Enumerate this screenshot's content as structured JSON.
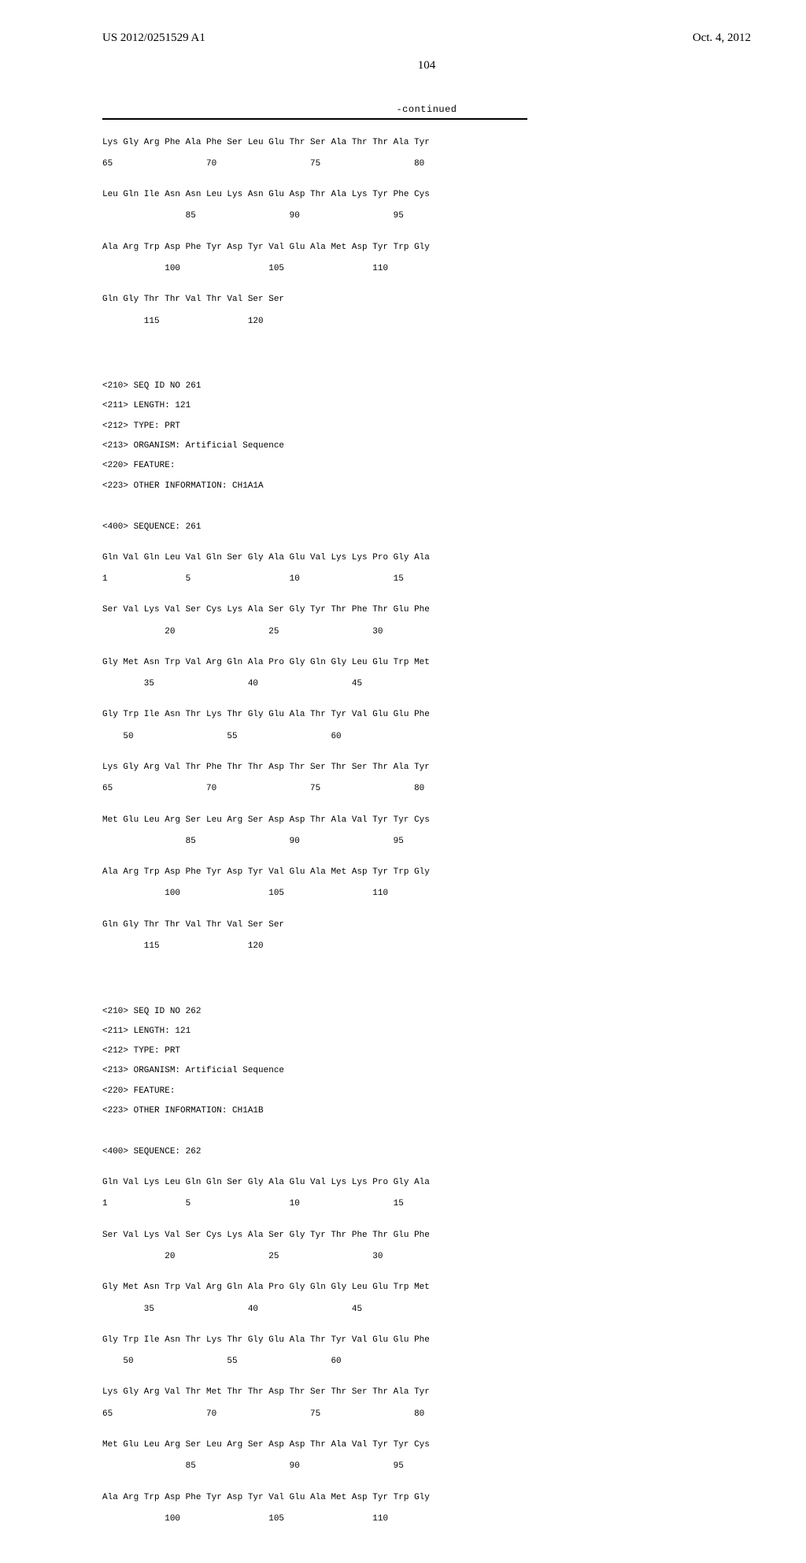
{
  "header": {
    "pub_number": "US 2012/0251529 A1",
    "pub_date": "Oct. 4, 2012"
  },
  "page_number": "104",
  "continued_label": "-continued",
  "partial_seq": {
    "rows": [
      {
        "aa": "Lys Gly Arg Phe Ala Phe Ser Leu Glu Thr Ser Ala Thr Thr Ala Tyr",
        "num": "65                  70                  75                  80"
      },
      {
        "aa": "Leu Gln Ile Asn Asn Leu Lys Asn Glu Asp Thr Ala Lys Tyr Phe Cys",
        "num": "                85                  90                  95"
      },
      {
        "aa": "Ala Arg Trp Asp Phe Tyr Asp Tyr Val Glu Ala Met Asp Tyr Trp Gly",
        "num": "            100                 105                 110"
      },
      {
        "aa": "Gln Gly Thr Thr Val Thr Val Ser Ser",
        "num": "        115                 120"
      }
    ]
  },
  "seq261": {
    "meta": [
      "<210> SEQ ID NO 261",
      "<211> LENGTH: 121",
      "<212> TYPE: PRT",
      "<213> ORGANISM: Artificial Sequence",
      "<220> FEATURE:",
      "<223> OTHER INFORMATION: CH1A1A"
    ],
    "seq_header": "<400> SEQUENCE: 261",
    "rows": [
      {
        "aa": "Gln Val Gln Leu Val Gln Ser Gly Ala Glu Val Lys Lys Pro Gly Ala",
        "num": "1               5                   10                  15"
      },
      {
        "aa": "Ser Val Lys Val Ser Cys Lys Ala Ser Gly Tyr Thr Phe Thr Glu Phe",
        "num": "            20                  25                  30"
      },
      {
        "aa": "Gly Met Asn Trp Val Arg Gln Ala Pro Gly Gln Gly Leu Glu Trp Met",
        "num": "        35                  40                  45"
      },
      {
        "aa": "Gly Trp Ile Asn Thr Lys Thr Gly Glu Ala Thr Tyr Val Glu Glu Phe",
        "num": "    50                  55                  60"
      },
      {
        "aa": "Lys Gly Arg Val Thr Phe Thr Thr Asp Thr Ser Thr Ser Thr Ala Tyr",
        "num": "65                  70                  75                  80"
      },
      {
        "aa": "Met Glu Leu Arg Ser Leu Arg Ser Asp Asp Thr Ala Val Tyr Tyr Cys",
        "num": "                85                  90                  95"
      },
      {
        "aa": "Ala Arg Trp Asp Phe Tyr Asp Tyr Val Glu Ala Met Asp Tyr Trp Gly",
        "num": "            100                 105                 110"
      },
      {
        "aa": "Gln Gly Thr Thr Val Thr Val Ser Ser",
        "num": "        115                 120"
      }
    ]
  },
  "seq262": {
    "meta": [
      "<210> SEQ ID NO 262",
      "<211> LENGTH: 121",
      "<212> TYPE: PRT",
      "<213> ORGANISM: Artificial Sequence",
      "<220> FEATURE:",
      "<223> OTHER INFORMATION: CH1A1B"
    ],
    "seq_header": "<400> SEQUENCE: 262",
    "rows": [
      {
        "aa": "Gln Val Lys Leu Gln Gln Ser Gly Ala Glu Val Lys Lys Pro Gly Ala",
        "num": "1               5                   10                  15"
      },
      {
        "aa": "Ser Val Lys Val Ser Cys Lys Ala Ser Gly Tyr Thr Phe Thr Glu Phe",
        "num": "            20                  25                  30"
      },
      {
        "aa": "Gly Met Asn Trp Val Arg Gln Ala Pro Gly Gln Gly Leu Glu Trp Met",
        "num": "        35                  40                  45"
      },
      {
        "aa": "Gly Trp Ile Asn Thr Lys Thr Gly Glu Ala Thr Tyr Val Glu Glu Phe",
        "num": "    50                  55                  60"
      },
      {
        "aa": "Lys Gly Arg Val Thr Met Thr Thr Asp Thr Ser Thr Ser Thr Ala Tyr",
        "num": "65                  70                  75                  80"
      },
      {
        "aa": "Met Glu Leu Arg Ser Leu Arg Ser Asp Asp Thr Ala Val Tyr Tyr Cys",
        "num": "                85                  90                  95"
      },
      {
        "aa": "Ala Arg Trp Asp Phe Tyr Asp Tyr Val Glu Ala Met Asp Tyr Trp Gly",
        "num": "            100                 105                 110"
      }
    ]
  }
}
